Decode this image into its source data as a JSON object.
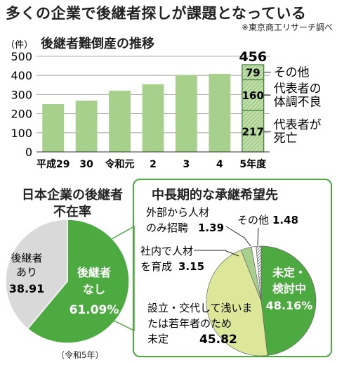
{
  "headline": "多くの企業で後継者探しが課題となっている",
  "source": "※東京商工リサーチ調べ",
  "chart_data": [
    {
      "type": "bar",
      "title": "後継者難倒産の推移",
      "ylabel": "（件）",
      "ylim": [
        0,
        500
      ],
      "yticks": [
        "0",
        "100",
        "200",
        "300",
        "400",
        "500"
      ],
      "categories": [
        "平成29",
        "30",
        "令和元",
        "2",
        "3",
        "4",
        "5年度"
      ],
      "values": [
        250,
        268,
        320,
        354,
        402,
        408,
        456
      ],
      "total_label": "456",
      "stack": [
        {
          "name": "死亡",
          "value": 217,
          "label": "代表者が\n死亡"
        },
        {
          "name": "体調不良",
          "value": 160,
          "label": "代表者の\n体調不良"
        },
        {
          "name": "その他",
          "value": 79,
          "label": "その他"
        }
      ],
      "colors": {
        "bar": "#a8d08d",
        "highlight": "#a8d08d",
        "hatch": "#3d8c35"
      }
    },
    {
      "type": "pie",
      "title": "日本企業の後継者不在率",
      "slices": [
        {
          "label": "後継者なし",
          "value": 61.09,
          "value_label": "61.09%",
          "color": "#4daa40"
        },
        {
          "label": "後継者あり",
          "value": 38.91,
          "value_label": "38.91",
          "color": "#d9d9d9"
        }
      ],
      "note": "（令和5年）"
    },
    {
      "type": "pie",
      "title": "中長期的な承継希望先",
      "slices": [
        {
          "label": "未定・検討中",
          "value": 48.16,
          "value_label": "48.16%",
          "color": "#4daa40"
        },
        {
          "label": "設立・交代して浅いまたは若年者のため未定",
          "value": 45.82,
          "value_label": "45.82",
          "color": "#dde79a"
        },
        {
          "label": "社内で人材を育成",
          "value": 3.15,
          "value_label": "3.15",
          "color": "#a8d08d"
        },
        {
          "label": "外部から人材のみ招聘",
          "value": 1.39,
          "value_label": "1.39",
          "color": "#ffffff"
        },
        {
          "label": "その他",
          "value": 1.48,
          "value_label": "1.48",
          "color": "#333333"
        }
      ]
    }
  ]
}
